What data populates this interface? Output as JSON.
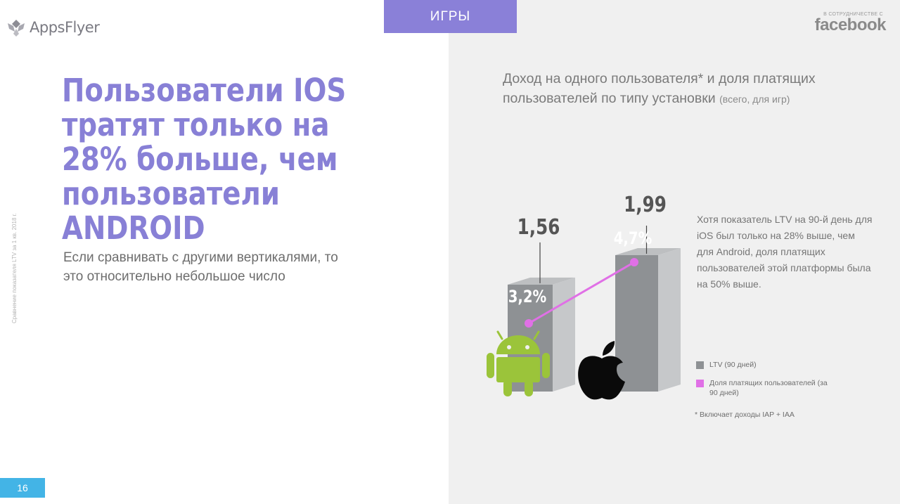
{
  "brand": {
    "name": "AppsFlyer"
  },
  "category_tab": "ИГРЫ",
  "partner": {
    "note": "В СОТРУДНИЧЕСТВЕ С",
    "logo_text": "facebook"
  },
  "headline": [
    "Пользователи IOS",
    "тратят только на",
    "28% больше, чем",
    "пользователи ANDROID"
  ],
  "subtext": "Если сравнивать с другими вертикалями, то это относительно небольшое число",
  "side_note": "Сравнение показателя LTV за 1 кв. 2018 г.",
  "page_number": "16",
  "chart_title": {
    "main": "Доход на одного пользователя* и доля платящих пользователей по типу установки",
    "qualifier": "(всего, для игр)"
  },
  "description": "Хотя показатель LTV на 90-й день для iOS был только на 28% выше, чем для Android, доля платящих пользователей этой платформы была на 50% выше.",
  "legend": [
    {
      "label": "LTV (90 дней)",
      "color": "#8e9194"
    },
    {
      "label": "Доля платящих пользователей (за 90 дней)",
      "color": "#e070e6"
    }
  ],
  "footnote": "* Включает доходы IAP + IAA",
  "chart_data": {
    "type": "bar",
    "categories": [
      "Android",
      "iOS"
    ],
    "category_icons": [
      "android-icon",
      "apple-icon"
    ],
    "series": [
      {
        "name": "LTV (90 дней)",
        "type": "bar",
        "values": [
          1.56,
          1.99
        ],
        "labels": [
          "1,56",
          "1,99"
        ],
        "color": "#8e9194"
      },
      {
        "name": "Доля платящих пользователей (за 90 дней)",
        "type": "line",
        "values": [
          3.2,
          4.7
        ],
        "labels": [
          "3,2%",
          "4,7%"
        ],
        "color": "#e070e6"
      }
    ]
  }
}
